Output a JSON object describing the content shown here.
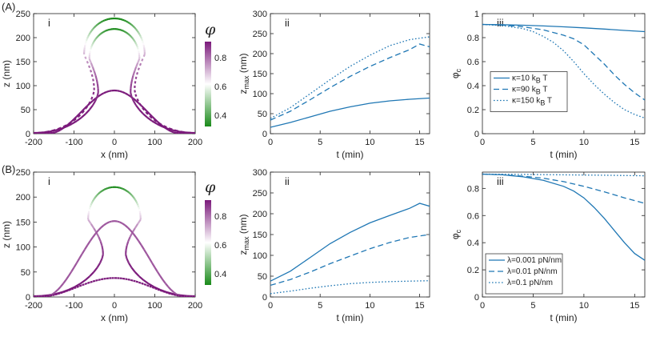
{
  "figure": {
    "row_labels": [
      "(A)",
      "(B)"
    ],
    "colorbar": {
      "symbol": "φ",
      "ticks": [
        "0.8",
        "0.6",
        "0.4"
      ],
      "range": [
        0.3,
        0.9
      ],
      "high_color": "#7b1a7b",
      "mid_color": "#ffffff",
      "low_color": "#1a8a1a"
    }
  },
  "chart_data": [
    {
      "id": "A-i",
      "type": "line",
      "panel_label": "i",
      "xlabel": "x (nm)",
      "ylabel": "z (nm)",
      "xlim": [
        -200,
        200
      ],
      "ylim": [
        0,
        250
      ],
      "xticks": [
        -200,
        -100,
        0,
        100,
        200
      ],
      "yticks": [
        0,
        50,
        100,
        150,
        200,
        250
      ],
      "grid": false,
      "series": [
        {
          "name": "solid (κ=10)",
          "style": "solid",
          "shape": "dome",
          "height": 90,
          "half_width": 165,
          "phi": 0.9
        },
        {
          "name": "dashed (κ=90)",
          "style": "dashed",
          "shape": "bud",
          "height": 218,
          "neck_half_width": 40,
          "cap_half_width": 62,
          "phi_tip": 0.3,
          "phi_base": 0.9
        },
        {
          "name": "dotted (κ=150)",
          "style": "dotted",
          "shape": "bud",
          "height": 240,
          "neck_half_width": 50,
          "cap_half_width": 75,
          "phi_tip": 0.28,
          "phi_base": 0.9
        }
      ]
    },
    {
      "id": "A-ii",
      "type": "line",
      "panel_label": "ii",
      "xlabel": "t (min)",
      "ylabel": "z",
      "ylabel_sub": "max",
      "ylabel_unit": " (nm)",
      "xlim": [
        0,
        16
      ],
      "ylim": [
        0,
        300
      ],
      "xticks": [
        0,
        5,
        10,
        15
      ],
      "yticks": [
        0,
        50,
        100,
        150,
        200,
        250,
        300
      ],
      "grid": false,
      "series": [
        {
          "name": "κ=10 kBT",
          "style": "solid",
          "color": "#1f77b4",
          "x": [
            0,
            2,
            4,
            6,
            8,
            10,
            12,
            14,
            16
          ],
          "y": [
            16,
            28,
            42,
            56,
            67,
            76,
            82,
            86,
            89
          ]
        },
        {
          "name": "κ=90 kBT",
          "style": "dashed",
          "color": "#1f77b4",
          "x": [
            0,
            2,
            4,
            6,
            8,
            10,
            12,
            14,
            15,
            16
          ],
          "y": [
            34,
            56,
            85,
            115,
            143,
            168,
            190,
            210,
            224,
            217
          ]
        },
        {
          "name": "κ=150 kBT",
          "style": "dotted",
          "color": "#1f77b4",
          "x": [
            0,
            2,
            4,
            6,
            8,
            10,
            12,
            14,
            16
          ],
          "y": [
            38,
            65,
            100,
            135,
            168,
            196,
            220,
            235,
            242
          ]
        }
      ]
    },
    {
      "id": "A-iii",
      "type": "line",
      "panel_label": "iii",
      "xlabel": "t (min)",
      "ylabel": "φ",
      "ylabel_sub": "c",
      "xlim": [
        0,
        16
      ],
      "ylim": [
        0,
        1
      ],
      "xticks": [
        0,
        5,
        10,
        15
      ],
      "yticks": [
        0,
        0.2,
        0.4,
        0.6,
        0.8,
        1
      ],
      "grid": false,
      "legend": "middle-left",
      "series": [
        {
          "name": "κ=10 kBT",
          "label_main": "κ=10 k",
          "label_sub": "B",
          "label_tail": " T",
          "style": "solid",
          "color": "#1f77b4",
          "x": [
            0,
            2,
            4,
            6,
            8,
            10,
            12,
            14,
            16
          ],
          "y": [
            0.91,
            0.907,
            0.903,
            0.897,
            0.89,
            0.881,
            0.871,
            0.86,
            0.85
          ]
        },
        {
          "name": "κ=90 kBT",
          "label_main": "κ=90 k",
          "label_sub": "B",
          "label_tail": " T",
          "style": "dashed",
          "color": "#1f77b4",
          "x": [
            0,
            2,
            4,
            6,
            8,
            9,
            10,
            11,
            12,
            13,
            14,
            15,
            16
          ],
          "y": [
            0.91,
            0.905,
            0.89,
            0.865,
            0.82,
            0.79,
            0.74,
            0.66,
            0.58,
            0.49,
            0.41,
            0.34,
            0.28
          ]
        },
        {
          "name": "κ=150 kBT",
          "label_main": "κ=150 k",
          "label_sub": "B",
          "label_tail": " T",
          "style": "dotted",
          "color": "#1f77b4",
          "x": [
            0,
            2,
            4,
            5,
            6,
            7,
            8,
            9,
            10,
            11,
            12,
            13,
            14,
            15,
            16
          ],
          "y": [
            0.91,
            0.9,
            0.875,
            0.85,
            0.81,
            0.76,
            0.69,
            0.6,
            0.5,
            0.41,
            0.33,
            0.26,
            0.2,
            0.16,
            0.13
          ]
        }
      ]
    },
    {
      "id": "B-i",
      "type": "line",
      "panel_label": "i",
      "xlabel": "x (nm)",
      "ylabel": "z (nm)",
      "xlim": [
        -200,
        200
      ],
      "ylim": [
        0,
        250
      ],
      "xticks": [
        -200,
        -100,
        0,
        100,
        200
      ],
      "yticks": [
        0,
        50,
        100,
        150,
        200,
        250
      ],
      "grid": false,
      "series": [
        {
          "name": "solid (λ=0.001)",
          "style": "solid",
          "shape": "bud",
          "height": 220,
          "neck_half_width": 28,
          "cap_half_width": 65,
          "phi_tip": 0.3,
          "phi_base": 0.9
        },
        {
          "name": "dashed (λ=0.01)",
          "style": "dashed",
          "shape": "dome",
          "height": 152,
          "half_width": 175,
          "phi": 0.82
        },
        {
          "name": "dotted (λ=0.1)",
          "style": "dotted",
          "shape": "dome",
          "height": 38,
          "half_width": 190,
          "phi": 0.9
        }
      ]
    },
    {
      "id": "B-ii",
      "type": "line",
      "panel_label": "ii",
      "xlabel": "t (min)",
      "ylabel": "z",
      "ylabel_sub": "max",
      "ylabel_unit": " (nm)",
      "xlim": [
        0,
        16
      ],
      "ylim": [
        0,
        300
      ],
      "xticks": [
        0,
        5,
        10,
        15
      ],
      "yticks": [
        0,
        50,
        100,
        150,
        200,
        250,
        300
      ],
      "grid": false,
      "series": [
        {
          "name": "λ=0.001 pN/nm",
          "style": "solid",
          "color": "#1f77b4",
          "x": [
            0,
            2,
            4,
            6,
            8,
            10,
            12,
            14,
            15,
            16
          ],
          "y": [
            38,
            62,
            95,
            128,
            155,
            178,
            196,
            213,
            225,
            218
          ]
        },
        {
          "name": "λ=0.01 pN/nm",
          "style": "dashed",
          "color": "#1f77b4",
          "x": [
            0,
            2,
            4,
            6,
            8,
            10,
            12,
            14,
            16
          ],
          "y": [
            28,
            42,
            60,
            80,
            98,
            116,
            131,
            143,
            150
          ]
        },
        {
          "name": "λ=0.1 pN/nm",
          "style": "dotted",
          "color": "#1f77b4",
          "x": [
            0,
            2,
            4,
            6,
            8,
            10,
            12,
            14,
            16
          ],
          "y": [
            8,
            14,
            21,
            27,
            32,
            35,
            37,
            38,
            39
          ]
        }
      ]
    },
    {
      "id": "B-iii",
      "type": "line",
      "panel_label": "iii",
      "xlabel": "t (min)",
      "ylabel": "φ",
      "ylabel_sub": "c",
      "xlim": [
        0,
        16
      ],
      "ylim": [
        0,
        0.92
      ],
      "xticks": [
        0,
        5,
        10,
        15
      ],
      "yticks": [
        0,
        0.2,
        0.4,
        0.6,
        0.8
      ],
      "grid": false,
      "legend": "bottom-left",
      "series": [
        {
          "name": "λ=0.001 pN/nm",
          "label_main": "λ=0.001 pN/nm",
          "style": "solid",
          "color": "#1f77b4",
          "x": [
            0,
            2,
            4,
            6,
            8,
            9,
            10,
            11,
            12,
            13,
            14,
            15,
            16
          ],
          "y": [
            0.905,
            0.9,
            0.885,
            0.86,
            0.815,
            0.78,
            0.73,
            0.66,
            0.58,
            0.49,
            0.4,
            0.32,
            0.27
          ]
        },
        {
          "name": "λ=0.01 pN/nm",
          "label_main": "λ=0.01 pN/nm",
          "style": "dashed",
          "color": "#1f77b4",
          "x": [
            0,
            2,
            4,
            6,
            8,
            10,
            12,
            14,
            16
          ],
          "y": [
            0.905,
            0.9,
            0.89,
            0.875,
            0.85,
            0.815,
            0.775,
            0.73,
            0.69
          ]
        },
        {
          "name": "λ=0.1 pN/nm",
          "label_main": "λ=0.1 pN/nm",
          "style": "dotted",
          "color": "#1f77b4",
          "x": [
            0,
            4,
            8,
            12,
            16
          ],
          "y": [
            0.905,
            0.903,
            0.9,
            0.897,
            0.893
          ]
        }
      ]
    }
  ]
}
